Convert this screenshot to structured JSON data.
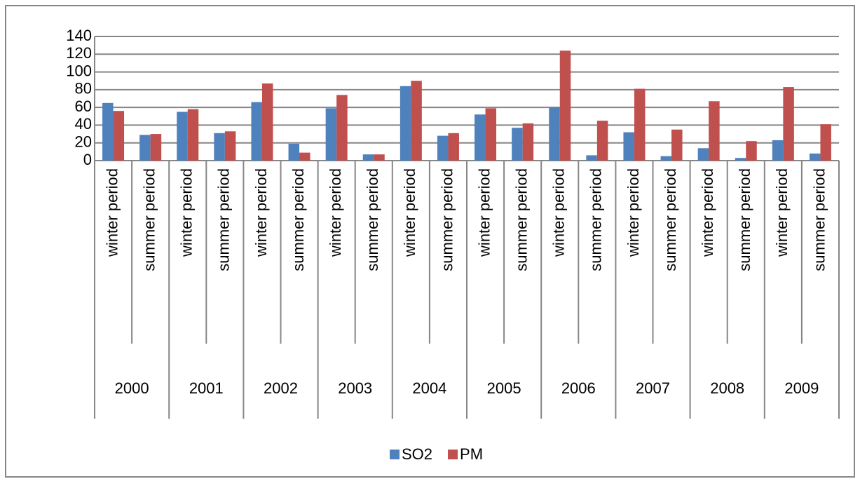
{
  "chart_data": {
    "type": "bar",
    "categories": [
      "winter period",
      "summer period",
      "winter period",
      "summer period",
      "winter period",
      "summer period",
      "winter period",
      "summer period",
      "winter period",
      "summer period",
      "winter period",
      "summer period",
      "winter period",
      "summer period",
      "winter period",
      "summer period",
      "winter period",
      "summer period",
      "winter period",
      "summer period"
    ],
    "groups": [
      "2000",
      "2001",
      "2002",
      "2003",
      "2004",
      "2005",
      "2006",
      "2007",
      "2008",
      "2009"
    ],
    "series": [
      {
        "name": "SO2",
        "color": "#4f81bd",
        "values": [
          65,
          29,
          55,
          31,
          66,
          19,
          59,
          7,
          84,
          28,
          52,
          37,
          60,
          6,
          32,
          5,
          14,
          3,
          23,
          8
        ]
      },
      {
        "name": "PM",
        "color": "#c0504d",
        "values": [
          56,
          30,
          58,
          33,
          87,
          9,
          74,
          7,
          90,
          31,
          59,
          42,
          124,
          45,
          81,
          35,
          67,
          22,
          83,
          41
        ]
      }
    ],
    "ylim": [
      0,
      140
    ],
    "yticks": [
      0,
      20,
      40,
      60,
      80,
      100,
      120,
      140
    ],
    "grid": true,
    "legend": "bottom"
  }
}
